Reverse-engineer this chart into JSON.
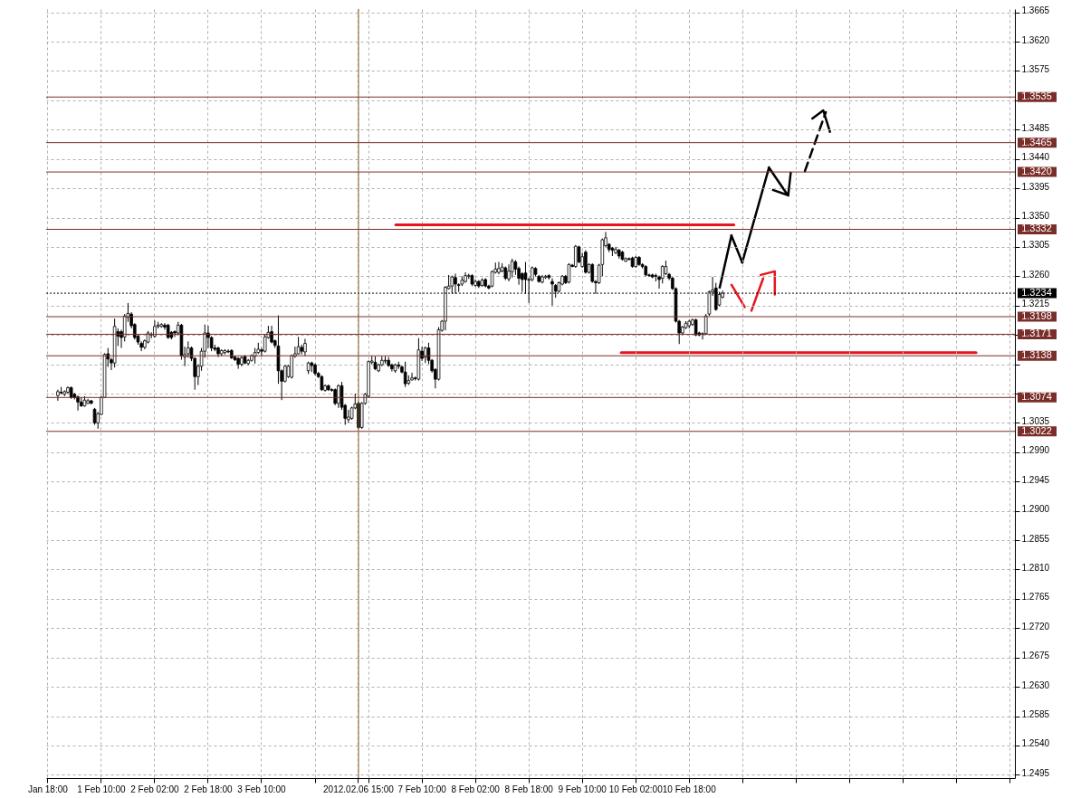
{
  "chart_data": {
    "type": "candlestick",
    "categories": [
      "Jan 18:00",
      null,
      null,
      null,
      null,
      null,
      null,
      null,
      null,
      null,
      null,
      null,
      null,
      null,
      null,
      null,
      "1 Feb 10:00",
      null,
      null,
      null,
      null,
      null,
      null,
      null,
      null,
      null,
      null,
      null,
      null,
      null,
      null,
      null,
      "2 Feb 02:00",
      null,
      null,
      null,
      null,
      null,
      null,
      null,
      null,
      null,
      null,
      null,
      null,
      null,
      null,
      null,
      "2 Feb 18:00",
      null,
      null,
      null,
      null,
      null,
      null,
      null,
      null,
      null,
      null,
      null,
      null,
      null,
      null,
      null,
      "3 Feb 10:00",
      null,
      null,
      null,
      null,
      null,
      null,
      null,
      null,
      null,
      null,
      null,
      null,
      null,
      null,
      null,
      null,
      null,
      null,
      null,
      null,
      null,
      null,
      null,
      null,
      null,
      null,
      null,
      null,
      "2012.02.06 15:00",
      null,
      null,
      null,
      null,
      null,
      null,
      null,
      null,
      null,
      null,
      null,
      null,
      null,
      null,
      null,
      null,
      null,
      null,
      "7 Feb 10:00",
      null,
      null,
      null,
      null,
      null,
      null,
      null,
      null,
      null,
      null,
      null,
      null,
      null,
      null,
      null,
      "8 Feb 02:00",
      null,
      null,
      null,
      null,
      null,
      null,
      null,
      null,
      null,
      null,
      null,
      null,
      null,
      null,
      null,
      "8 Feb 18:00",
      null,
      null,
      null,
      null,
      null,
      null,
      null,
      null,
      null,
      null,
      null,
      null,
      null,
      null,
      null,
      "9 Feb 10:00",
      null,
      null,
      null,
      null,
      null,
      null,
      null,
      null,
      null,
      null,
      null,
      null,
      null,
      null,
      null,
      "10 Feb 02:00",
      null,
      null,
      null,
      null,
      null,
      null,
      null,
      null,
      null,
      null,
      null,
      null,
      null,
      null,
      null,
      "10 Feb 18:00",
      null,
      null,
      null,
      null,
      null,
      null,
      null,
      null,
      null,
      null,
      null,
      null,
      null,
      null,
      null,
      null,
      null,
      null,
      null,
      null,
      null,
      null,
      null,
      null,
      null,
      null,
      null,
      null,
      null,
      null,
      null,
      null,
      null,
      null,
      null,
      null,
      null,
      null,
      null,
      null,
      null,
      null,
      null,
      null,
      null,
      null,
      null,
      null,
      null,
      null,
      null,
      null,
      null,
      null,
      null,
      null,
      null,
      null,
      null,
      null,
      null,
      null,
      null,
      null,
      null,
      null,
      null,
      null,
      null,
      null,
      null,
      null,
      null,
      null,
      null,
      null,
      null,
      null,
      null,
      null,
      null,
      null,
      null,
      null,
      null,
      null,
      null,
      null,
      null,
      null,
      null,
      null,
      null,
      null,
      null,
      null,
      null
    ],
    "ohlc": [
      null,
      null,
      null,
      [
        1.3077,
        1.3086,
        1.3069,
        1.3083
      ],
      [
        1.3082,
        1.309,
        1.3079,
        1.3081
      ],
      [
        1.3079,
        1.3085,
        1.3076,
        1.3083
      ],
      [
        1.3082,
        1.3091,
        1.308,
        1.3089
      ],
      [
        1.3089,
        1.3091,
        1.3072,
        1.3074
      ],
      [
        1.3079,
        1.3081,
        1.3071,
        1.3074
      ],
      [
        1.3075,
        1.3077,
        1.3054,
        1.3067
      ],
      [
        1.3067,
        1.3074,
        1.306,
        1.3061
      ],
      [
        1.3061,
        1.3076,
        1.306,
        1.307
      ],
      [
        1.3065,
        1.3072,
        1.3064,
        1.3069
      ],
      [
        1.3069,
        1.307,
        1.3064,
        1.3065
      ],
      [
        1.3056,
        1.3058,
        1.3032,
        1.3035
      ],
      [
        1.3035,
        1.3052,
        1.3026,
        1.3049
      ],
      [
        1.3048,
        1.3076,
        1.3047,
        1.3074
      ],
      [
        1.3074,
        1.3142,
        1.3073,
        1.314
      ],
      [
        1.3141,
        1.315,
        1.3121,
        1.3133
      ],
      [
        1.3132,
        1.3135,
        1.3116,
        1.3127
      ],
      [
        1.3127,
        1.3195,
        1.312,
        1.3183
      ],
      [
        1.3175,
        1.318,
        1.3153,
        1.3168
      ],
      [
        1.3175,
        1.3178,
        1.315,
        1.3166
      ],
      [
        1.3167,
        1.3202,
        1.316,
        1.3199
      ],
      [
        1.3197,
        1.3219,
        1.319,
        1.3203
      ],
      [
        1.3202,
        1.3205,
        1.318,
        1.3184
      ],
      [
        1.3186,
        1.3188,
        1.3163,
        1.3166
      ],
      [
        1.3168,
        1.317,
        1.3155,
        1.3159
      ],
      [
        1.3157,
        1.316,
        1.3145,
        1.3151
      ],
      [
        1.3151,
        1.3163,
        1.3148,
        1.3161
      ],
      [
        1.3159,
        1.3176,
        1.3157,
        1.3173
      ],
      [
        1.317,
        1.3174,
        1.3165,
        1.3171
      ],
      [
        1.3168,
        1.3192,
        1.3166,
        1.3183
      ],
      [
        1.3183,
        1.319,
        1.318,
        1.3185
      ],
      [
        1.3183,
        1.3188,
        1.3181,
        1.3186
      ],
      [
        1.3185,
        1.3188,
        1.3178,
        1.3182
      ],
      [
        1.3185,
        1.3187,
        1.3164,
        1.3166
      ],
      [
        1.3174,
        1.3176,
        1.3163,
        1.3166
      ],
      [
        1.3175,
        1.3177,
        1.3167,
        1.3173
      ],
      [
        1.3173,
        1.319,
        1.317,
        1.3185
      ],
      [
        1.3185,
        1.3187,
        1.3132,
        1.3138
      ],
      [
        1.3136,
        1.3152,
        1.3122,
        1.314
      ],
      [
        1.3141,
        1.316,
        1.3135,
        1.315
      ],
      [
        1.315,
        1.3152,
        1.313,
        1.3134
      ],
      [
        1.3134,
        1.3136,
        1.3086,
        1.3106
      ],
      [
        1.3106,
        1.3125,
        1.3093,
        1.3122
      ],
      [
        1.3122,
        1.315,
        1.3115,
        1.3145
      ],
      [
        1.3145,
        1.3186,
        1.3135,
        1.3173
      ],
      [
        1.3173,
        1.3184,
        1.315,
        1.3166
      ],
      [
        1.3166,
        1.3168,
        1.3145,
        1.315
      ],
      [
        1.315,
        1.3155,
        1.3145,
        1.3148
      ],
      [
        1.315,
        1.3152,
        1.3136,
        1.3141
      ],
      [
        1.3141,
        1.3148,
        1.3138,
        1.3146
      ],
      [
        1.3143,
        1.3148,
        1.314,
        1.3146
      ],
      [
        1.3145,
        1.3148,
        1.3142,
        1.3144
      ],
      [
        1.3146,
        1.3148,
        1.3133,
        1.3135
      ],
      [
        1.3136,
        1.3138,
        1.313,
        1.3132
      ],
      [
        1.3134,
        1.3136,
        1.3118,
        1.3125
      ],
      [
        1.3125,
        1.3138,
        1.3122,
        1.3135
      ],
      [
        1.3137,
        1.3139,
        1.3125,
        1.3127
      ],
      [
        1.3126,
        1.3133,
        1.3124,
        1.3131
      ],
      [
        1.3131,
        1.314,
        1.3129,
        1.3138
      ],
      [
        1.3137,
        1.315,
        1.3126,
        1.3143
      ],
      [
        1.3143,
        1.3158,
        1.3141,
        1.3148
      ],
      [
        1.3147,
        1.315,
        1.3137,
        1.3145
      ],
      [
        1.3145,
        1.317,
        1.3143,
        1.3167
      ],
      [
        1.3166,
        1.3184,
        1.3164,
        1.3174
      ],
      [
        1.3175,
        1.3184,
        1.3157,
        1.3159
      ],
      [
        1.3161,
        1.3163,
        1.315,
        1.3154
      ],
      [
        1.3153,
        1.32,
        1.3095,
        1.3115
      ],
      [
        1.3115,
        1.3117,
        1.307,
        1.3099
      ],
      [
        1.3099,
        1.3124,
        1.3097,
        1.3122
      ],
      [
        1.3106,
        1.3124,
        1.3104,
        1.3122
      ],
      [
        1.3105,
        1.314,
        1.3103,
        1.3138
      ],
      [
        1.3137,
        1.3152,
        1.3135,
        1.3141
      ],
      [
        1.3141,
        1.3167,
        1.314,
        1.3152
      ],
      [
        1.3151,
        1.3155,
        1.314,
        1.3145
      ],
      [
        1.3144,
        1.3164,
        1.3138,
        1.3157
      ],
      [
        1.3115,
        1.3129,
        1.311,
        1.3127
      ],
      [
        1.3127,
        1.3129,
        1.3113,
        1.3123
      ],
      [
        1.3124,
        1.3126,
        1.3108,
        1.3111
      ],
      [
        1.3111,
        1.3113,
        1.3104,
        1.3106
      ],
      [
        1.3106,
        1.3108,
        1.3084,
        1.3086
      ],
      [
        1.3085,
        1.3094,
        1.3083,
        1.3092
      ],
      [
        1.3092,
        1.3094,
        1.3084,
        1.3086
      ],
      [
        1.3086,
        1.3088,
        1.3083,
        1.3085
      ],
      [
        1.3086,
        1.3088,
        1.3062,
        1.3065
      ],
      [
        1.3065,
        1.3094,
        1.3058,
        1.3092
      ],
      [
        1.3092,
        1.3098,
        1.3055,
        1.3059
      ],
      [
        1.3062,
        1.3064,
        1.3032,
        1.3042
      ],
      [
        1.304,
        1.3055,
        1.3035,
        1.3044
      ],
      [
        1.3042,
        1.306,
        1.304,
        1.3058
      ],
      [
        1.3058,
        1.308,
        1.3056,
        1.3064
      ],
      [
        1.3065,
        1.3067,
        1.3026,
        1.3028
      ],
      [
        1.3028,
        1.3067,
        1.3026,
        1.3065
      ],
      [
        1.3065,
        1.3081,
        1.3063,
        1.3079
      ],
      [
        1.3076,
        1.3131,
        1.3074,
        1.3129
      ],
      [
        1.3128,
        1.3138,
        1.3125,
        1.313
      ],
      [
        1.3128,
        1.3137,
        1.3116,
        1.3118
      ],
      [
        1.3115,
        1.3126,
        1.3113,
        1.3124
      ],
      [
        1.3124,
        1.3137,
        1.3122,
        1.3131
      ],
      [
        1.313,
        1.3137,
        1.3126,
        1.3131
      ],
      [
        1.3131,
        1.3136,
        1.3121,
        1.3123
      ],
      [
        1.3124,
        1.3126,
        1.3114,
        1.3118
      ],
      [
        1.3115,
        1.3126,
        1.3112,
        1.3124
      ],
      [
        1.3124,
        1.3129,
        1.3118,
        1.3122
      ],
      [
        1.3121,
        1.3123,
        1.3111,
        1.3113
      ],
      [
        1.3113,
        1.3129,
        1.309,
        1.3095
      ],
      [
        1.3096,
        1.3108,
        1.3093,
        1.31
      ],
      [
        1.3101,
        1.3112,
        1.31,
        1.3104
      ],
      [
        1.3104,
        1.3106,
        1.31,
        1.3103
      ],
      [
        1.3102,
        1.3165,
        1.31,
        1.3147
      ],
      [
        1.3145,
        1.3152,
        1.313,
        1.3134
      ],
      [
        1.3136,
        1.3152,
        1.3127,
        1.315
      ],
      [
        1.315,
        1.3158,
        1.3125,
        1.3131
      ],
      [
        1.3131,
        1.3133,
        1.3112,
        1.3115
      ],
      [
        1.3117,
        1.3119,
        1.3088,
        1.3102
      ],
      [
        1.3102,
        1.3182,
        1.31,
        1.3178
      ],
      [
        1.3177,
        1.3193,
        1.3175,
        1.3191
      ],
      [
        1.3191,
        1.3245,
        1.3177,
        1.3243
      ],
      [
        1.3241,
        1.3262,
        1.324,
        1.3245
      ],
      [
        1.3245,
        1.3261,
        1.3233,
        1.3259
      ],
      [
        1.3258,
        1.3264,
        1.3233,
        1.3248
      ],
      [
        1.3247,
        1.3249,
        1.3236,
        1.3246
      ],
      [
        1.3248,
        1.326,
        1.3245,
        1.3254
      ],
      [
        1.3252,
        1.3266,
        1.325,
        1.3261
      ],
      [
        1.326,
        1.3264,
        1.3256,
        1.3261
      ],
      [
        1.3261,
        1.3263,
        1.3245,
        1.3248
      ],
      [
        1.3246,
        1.3255,
        1.3244,
        1.3252
      ],
      [
        1.3252,
        1.3254,
        1.3242,
        1.3245
      ],
      [
        1.3246,
        1.3257,
        1.3244,
        1.3254
      ],
      [
        1.3255,
        1.3257,
        1.3243,
        1.3245
      ],
      [
        1.3245,
        1.3247,
        1.324,
        1.3242
      ],
      [
        1.3245,
        1.3269,
        1.3243,
        1.3267
      ],
      [
        1.3266,
        1.3281,
        1.3264,
        1.3271
      ],
      [
        1.3266,
        1.3282,
        1.3263,
        1.3272
      ],
      [
        1.3268,
        1.328,
        1.3266,
        1.3274
      ],
      [
        1.3273,
        1.3275,
        1.3254,
        1.3257
      ],
      [
        1.3256,
        1.3278,
        1.3252,
        1.3268
      ],
      [
        1.3267,
        1.3287,
        1.3258,
        1.3283
      ],
      [
        1.3282,
        1.3285,
        1.3262,
        1.3271
      ],
      [
        1.3272,
        1.3275,
        1.3247,
        1.3257
      ],
      [
        1.3264,
        1.3266,
        1.3236,
        1.3255
      ],
      [
        1.3265,
        1.3282,
        1.3233,
        1.3255
      ],
      [
        1.3255,
        1.3258,
        1.3219,
        1.3254
      ],
      [
        1.3255,
        1.3275,
        1.3252,
        1.3273
      ],
      [
        1.3272,
        1.3274,
        1.326,
        1.3263
      ],
      [
        1.326,
        1.3262,
        1.325,
        1.3252
      ],
      [
        1.3251,
        1.3262,
        1.3249,
        1.3259
      ],
      [
        1.3258,
        1.3262,
        1.3256,
        1.326
      ],
      [
        1.3261,
        1.3263,
        1.3255,
        1.3258
      ],
      [
        1.3252,
        1.3257,
        1.3215,
        1.3248
      ],
      [
        1.3246,
        1.3248,
        1.3227,
        1.3237
      ],
      [
        1.3237,
        1.3252,
        1.3235,
        1.325
      ],
      [
        1.3248,
        1.3262,
        1.3246,
        1.326
      ],
      [
        1.326,
        1.3262,
        1.3248,
        1.325
      ],
      [
        1.3251,
        1.328,
        1.3249,
        1.3278
      ],
      [
        1.3277,
        1.3279,
        1.3274,
        1.3275
      ],
      [
        1.3275,
        1.3308,
        1.3273,
        1.3306
      ],
      [
        1.3305,
        1.3307,
        1.328,
        1.3282
      ],
      [
        1.3275,
        1.3296,
        1.3273,
        1.329
      ],
      [
        1.3297,
        1.33,
        1.3264,
        1.3266
      ],
      [
        1.3266,
        1.328,
        1.3264,
        1.3278
      ],
      [
        1.3278,
        1.328,
        1.325,
        1.3252
      ],
      [
        1.3252,
        1.3254,
        1.3233,
        1.325
      ],
      [
        1.325,
        1.3279,
        1.3248,
        1.3277
      ],
      [
        1.3278,
        1.3318,
        1.326,
        1.3316
      ],
      [
        1.3307,
        1.3328,
        1.3305,
        1.3319
      ],
      [
        1.3309,
        1.3311,
        1.3297,
        1.3301
      ],
      [
        1.3303,
        1.3305,
        1.3291,
        1.33
      ],
      [
        1.3296,
        1.3305,
        1.3294,
        1.3301
      ],
      [
        1.33,
        1.3302,
        1.3287,
        1.3291
      ],
      [
        1.3297,
        1.3299,
        1.3284,
        1.3286
      ],
      [
        1.3283,
        1.3289,
        1.3282,
        1.3287
      ],
      [
        1.3287,
        1.3289,
        1.3284,
        1.3286
      ],
      [
        1.3288,
        1.329,
        1.3273,
        1.3275
      ],
      [
        1.3275,
        1.3291,
        1.3273,
        1.3289
      ],
      [
        1.3289,
        1.3291,
        1.3276,
        1.3278
      ],
      [
        1.3278,
        1.328,
        1.3272,
        1.3275
      ],
      [
        1.3275,
        1.3277,
        1.326,
        1.3262
      ],
      [
        1.3262,
        1.3264,
        1.3259,
        1.3261
      ],
      [
        1.3262,
        1.3264,
        1.3257,
        1.3259
      ],
      [
        1.3261,
        1.3264,
        1.3252,
        1.326
      ],
      [
        1.3259,
        1.3261,
        1.3241,
        1.3255
      ],
      [
        1.3257,
        1.3277,
        1.3249,
        1.3275
      ],
      [
        1.3264,
        1.3284,
        1.3262,
        1.3275
      ],
      [
        1.3263,
        1.3265,
        1.3254,
        1.3257
      ],
      [
        1.3257,
        1.3259,
        1.3239,
        1.3241
      ],
      [
        1.3241,
        1.3243,
        1.3189,
        1.3191
      ],
      [
        1.3191,
        1.3193,
        1.3156,
        1.3173
      ],
      [
        1.3173,
        1.3184,
        1.3171,
        1.3182
      ],
      [
        1.3181,
        1.3191,
        1.3179,
        1.3188
      ],
      [
        1.3184,
        1.3193,
        1.318,
        1.3191
      ],
      [
        1.3186,
        1.3195,
        1.3184,
        1.3193
      ],
      [
        1.3193,
        1.3195,
        1.3168,
        1.317
      ],
      [
        1.3173,
        1.3175,
        1.3168,
        1.317
      ],
      [
        1.3171,
        1.3174,
        1.3163,
        1.3172
      ],
      [
        1.3172,
        1.3202,
        1.317,
        1.3199
      ],
      [
        1.3202,
        1.3238,
        1.3199,
        1.3236
      ],
      [
        1.3236,
        1.3259,
        1.323,
        1.3239
      ],
      [
        1.3242,
        1.325,
        1.3207,
        1.3209
      ],
      [
        1.3216,
        1.3236,
        1.3214,
        1.3232
      ],
      [
        1.3228,
        1.3238,
        1.3226,
        1.3234
      ],
      null,
      null,
      null,
      null,
      null,
      null,
      null,
      null,
      null,
      null,
      null,
      null,
      null,
      null,
      null,
      null,
      null,
      null,
      null,
      null,
      null,
      null,
      null,
      null,
      null,
      null,
      null,
      null,
      null,
      null,
      null,
      null,
      null,
      null,
      null,
      null,
      null,
      null,
      null,
      null,
      null,
      null,
      null,
      null,
      null,
      null,
      null,
      null,
      null,
      null,
      null,
      null,
      null,
      null,
      null,
      null,
      null,
      null,
      null,
      null,
      null,
      null,
      null,
      null,
      null,
      null,
      null,
      null,
      null,
      null,
      null,
      null,
      null,
      null,
      null,
      null,
      null,
      null,
      null,
      null,
      null,
      null,
      null,
      null,
      null,
      null,
      null
    ],
    "ylim": [
      1.249,
      1.367
    ],
    "yticks": [
      {
        "value": 1.2495,
        "label": "1.2495"
      },
      {
        "value": 1.254,
        "label": "1.2540"
      },
      {
        "value": 1.2585,
        "label": "1.2585"
      },
      {
        "value": 1.263,
        "label": "1.2630"
      },
      {
        "value": 1.2675,
        "label": "1.2675"
      },
      {
        "value": 1.272,
        "label": "1.2720"
      },
      {
        "value": 1.2765,
        "label": "1.2765"
      },
      {
        "value": 1.281,
        "label": "1.2810"
      },
      {
        "value": 1.2855,
        "label": "1.2855"
      },
      {
        "value": 1.29,
        "label": "1.2900"
      },
      {
        "value": 1.2945,
        "label": "1.2945"
      },
      {
        "value": 1.299,
        "label": "1.2990"
      },
      {
        "value": 1.3035,
        "label": "1.3035"
      },
      {
        "value": 1.308,
        "label": null
      },
      {
        "value": 1.3125,
        "label": null
      },
      {
        "value": 1.317,
        "label": null
      },
      {
        "value": 1.3215,
        "label": "1.3215"
      },
      {
        "value": 1.326,
        "label": "1.3260"
      },
      {
        "value": 1.3305,
        "label": "1.3305"
      },
      {
        "value": 1.335,
        "label": "1.3350"
      },
      {
        "value": 1.3395,
        "label": "1.3395"
      },
      {
        "value": 1.344,
        "label": "1.3440"
      },
      {
        "value": 1.3485,
        "label": "1.3485"
      },
      {
        "value": 1.353,
        "label": null
      },
      {
        "value": 1.3575,
        "label": "1.3575"
      },
      {
        "value": 1.362,
        "label": "1.3620"
      },
      {
        "value": 1.3665,
        "label": "1.3665"
      }
    ],
    "ref_lines": [
      {
        "axis": "y",
        "value": 1.3535,
        "label": "1.3535",
        "color": "#7a2e2a"
      },
      {
        "axis": "y",
        "value": 1.3465,
        "label": "1.3465",
        "color": "#7a2e2a"
      },
      {
        "axis": "y",
        "value": 1.342,
        "label": "1.3420",
        "color": "#7a2e2a"
      },
      {
        "axis": "y",
        "value": 1.3332,
        "label": "1.3332",
        "color": "#7a2e2a"
      },
      {
        "axis": "y",
        "value": 1.3234,
        "label": "1.3234",
        "color": "#000000",
        "line_style": "dotted"
      },
      {
        "axis": "y",
        "value": 1.3198,
        "label": "1.3198",
        "color": "#7a2e2a"
      },
      {
        "axis": "y",
        "value": 1.3171,
        "label": "1.3171",
        "color": "#7a2e2a"
      },
      {
        "axis": "y",
        "value": 1.3138,
        "label": "1.3138",
        "color": "#7a2e2a"
      },
      {
        "axis": "y",
        "value": 1.3074,
        "label": "1.3074",
        "color": "#7a2e2a"
      },
      {
        "axis": "y",
        "value": 1.3022,
        "label": "1.3022",
        "color": "#7a2e2a"
      },
      {
        "axis": "x",
        "value": "2012.02.06 15:00",
        "color": "#8b5a2b"
      }
    ],
    "grid": true
  }
}
